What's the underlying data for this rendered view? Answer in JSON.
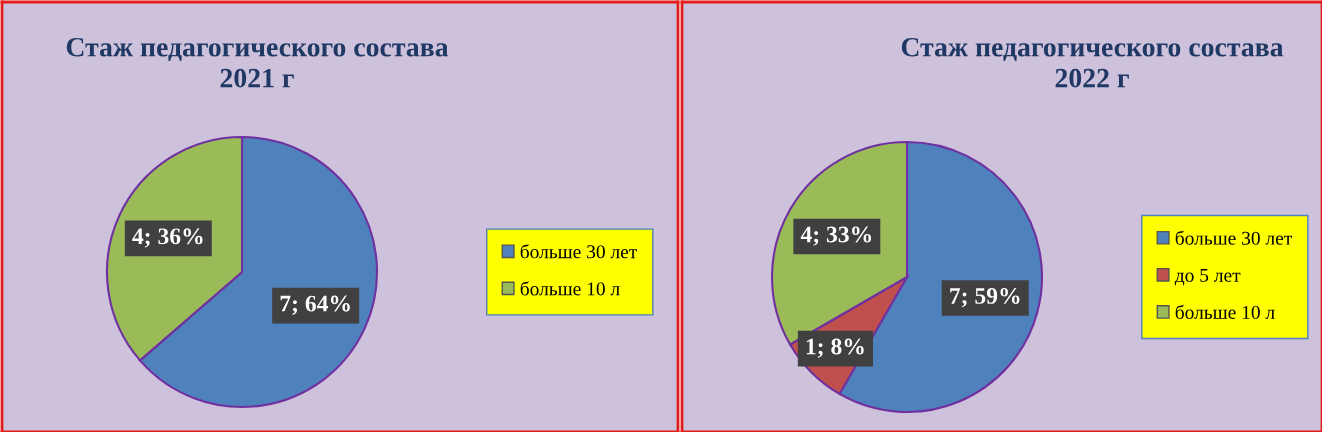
{
  "chart_data": [
    {
      "type": "pie",
      "title": "Стаж педагогического состава\n2021 г",
      "categories": [
        "больше 30 лет",
        "больше 10 л"
      ],
      "values": [
        7,
        4
      ],
      "colors": [
        "#4f81bd",
        "#9bbb59"
      ],
      "value_labels": [
        "7; 64%",
        "4; 36%"
      ],
      "legend": "right"
    },
    {
      "type": "pie",
      "title": "Стаж педагогического состава\n2022 г",
      "categories": [
        "больше 30 лет",
        "до 5 лет",
        "больше 10 л"
      ],
      "values": [
        7,
        1,
        4
      ],
      "colors": [
        "#4f81bd",
        "#c0504d",
        "#9bbb59"
      ],
      "value_labels": [
        "7; 59%",
        "1; 8%",
        "4; 33%"
      ],
      "legend": "right"
    }
  ]
}
